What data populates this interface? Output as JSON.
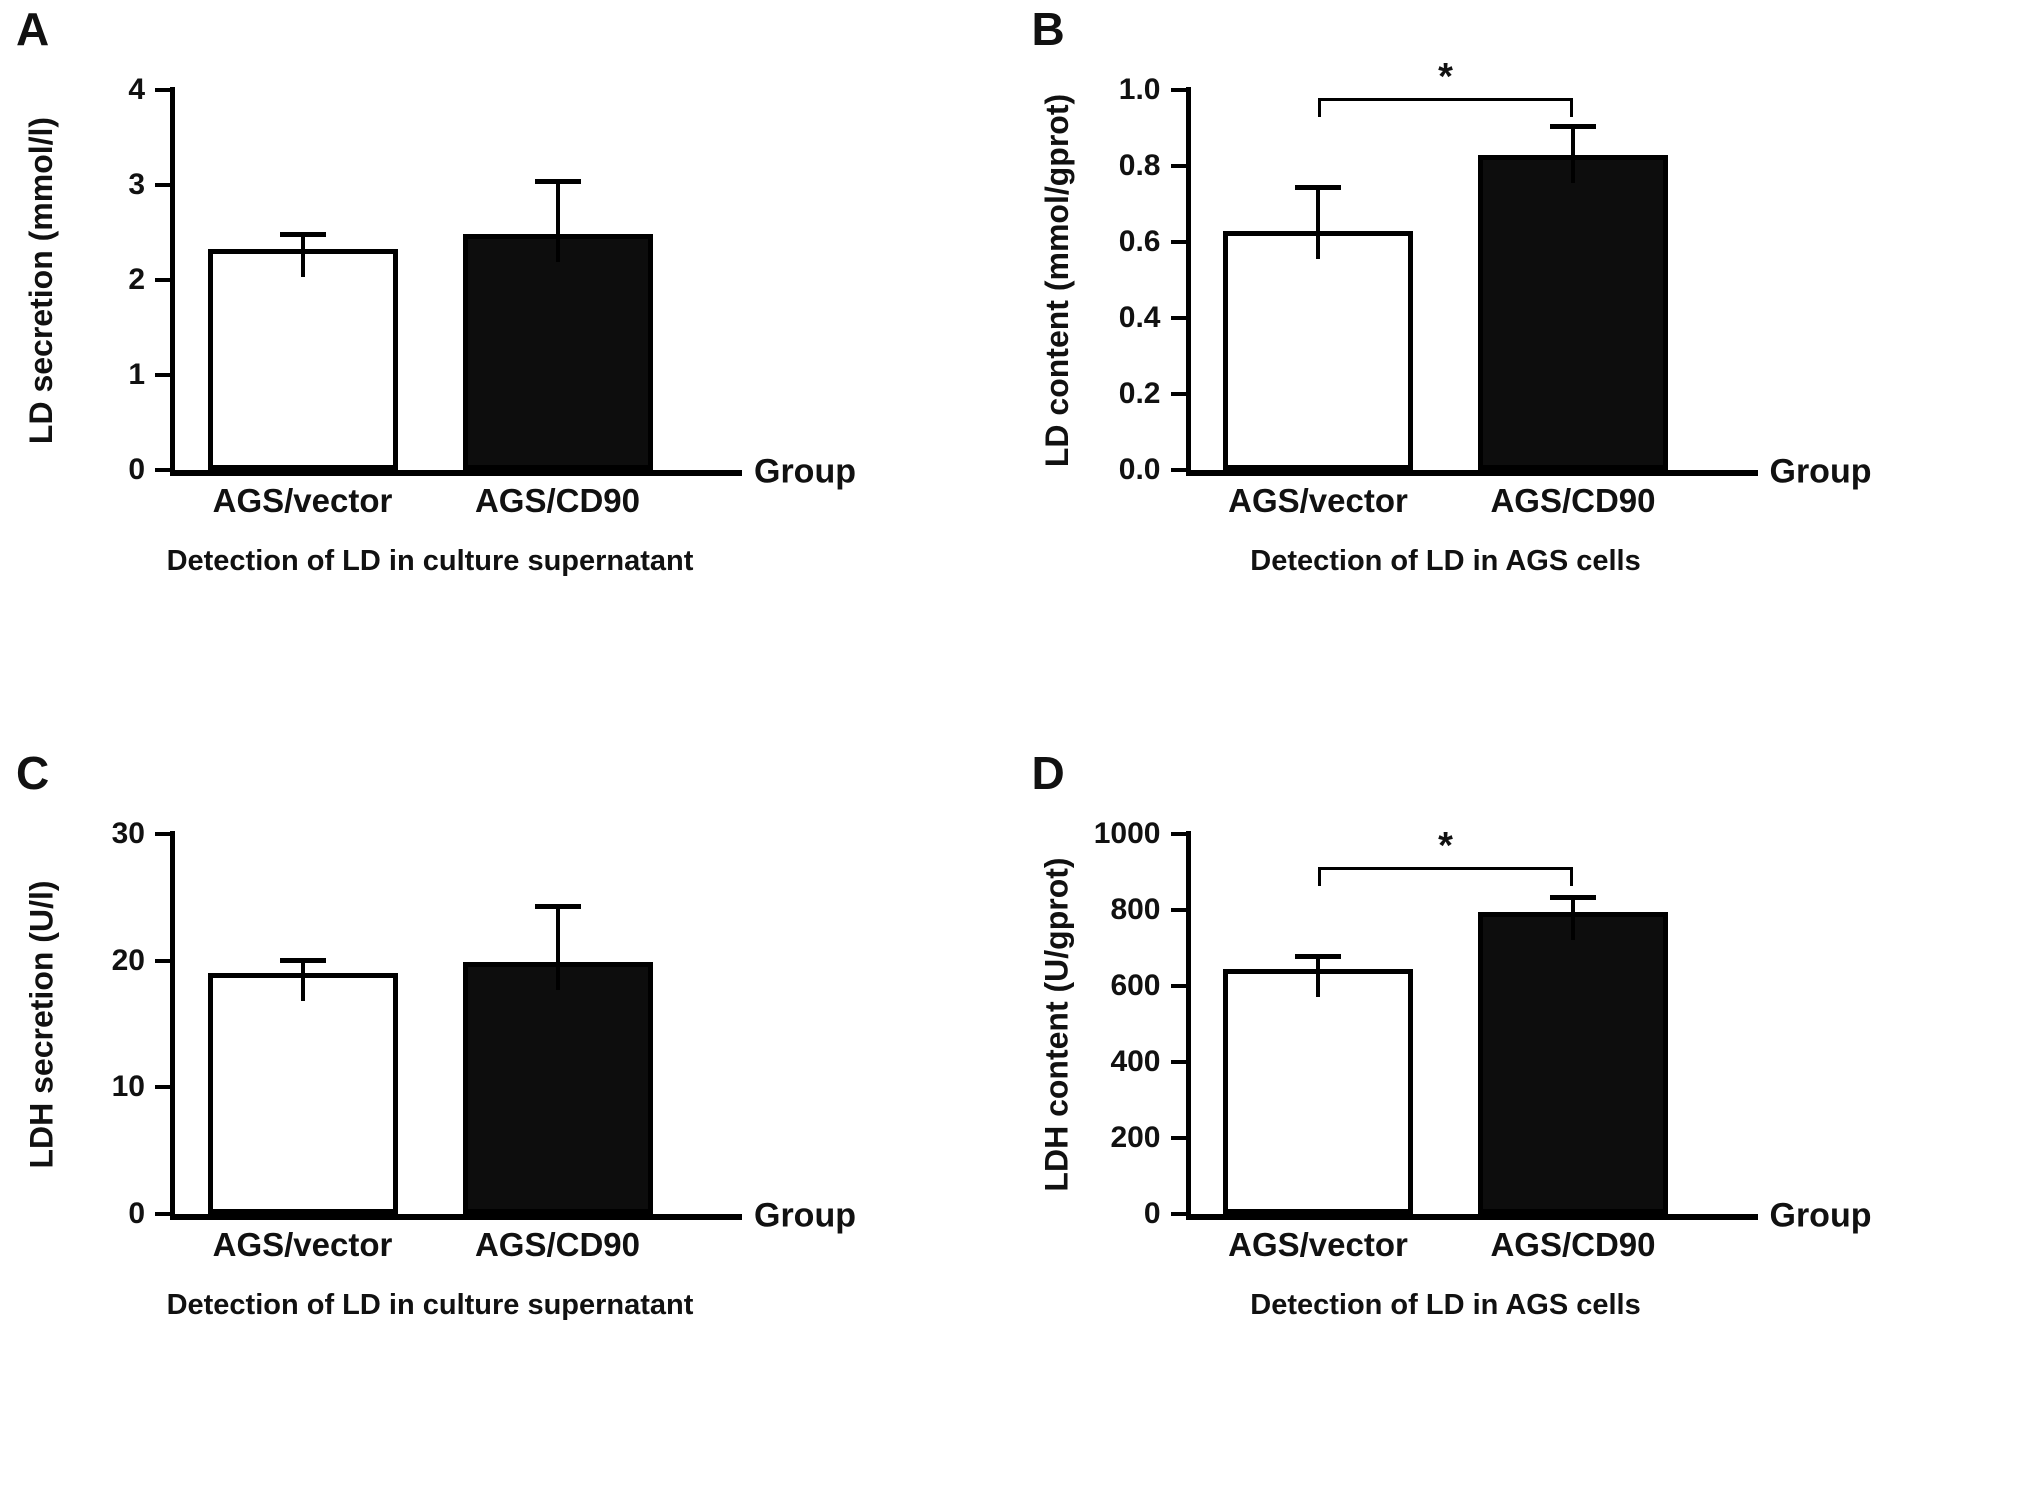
{
  "chart_data": [
    {
      "type": "bar",
      "panel": "A",
      "ylabel": "LD secretion (mmol/l)",
      "xlabel": "Group",
      "caption": "Detection of LD in culture supernatant",
      "categories": [
        "AGS/vector",
        "AGS/CD90"
      ],
      "values": [
        2.33,
        2.48
      ],
      "errors_plus": [
        0.18,
        0.58
      ],
      "bar_colors": [
        "#ffffff",
        "#0d0d0d"
      ],
      "ylim": [
        0,
        4
      ],
      "yticks": [
        0,
        1,
        2,
        3,
        4
      ],
      "ytick_labels": [
        "0",
        "1",
        "2",
        "3",
        "4"
      ],
      "legend": "none",
      "grid": false,
      "significance": null
    },
    {
      "type": "bar",
      "panel": "B",
      "ylabel": "LD content (mmol/gprot)",
      "xlabel": "Group",
      "caption": "Detection of LD in AGS cells",
      "categories": [
        "AGS/vector",
        "AGS/CD90"
      ],
      "values": [
        0.63,
        0.83
      ],
      "errors_plus": [
        0.12,
        0.08
      ],
      "bar_colors": [
        "#ffffff",
        "#0d0d0d"
      ],
      "ylim": [
        0,
        1.0
      ],
      "yticks": [
        0,
        0.2,
        0.4,
        0.6,
        0.8,
        1.0
      ],
      "ytick_labels": [
        "0.0",
        "0.2",
        "0.4",
        "0.6",
        "0.8",
        "1.0"
      ],
      "legend": "none",
      "grid": false,
      "significance": {
        "label": "*",
        "y": 0.97
      }
    },
    {
      "type": "bar",
      "panel": "C",
      "ylabel": "LDH secretion (U/l)",
      "xlabel": "Group",
      "caption": "Detection of LD in culture supernatant",
      "categories": [
        "AGS/vector",
        "AGS/CD90"
      ],
      "values": [
        19.0,
        19.9
      ],
      "errors_plus": [
        1.2,
        4.6
      ],
      "bar_colors": [
        "#ffffff",
        "#0d0d0d"
      ],
      "ylim": [
        0,
        30
      ],
      "yticks": [
        0,
        10,
        20,
        30
      ],
      "ytick_labels": [
        "0",
        "10",
        "20",
        "30"
      ],
      "legend": "none",
      "grid": false,
      "significance": null
    },
    {
      "type": "bar",
      "panel": "D",
      "ylabel": "LDH content (U/gprot)",
      "xlabel": "Group",
      "caption": "Detection of LD in AGS cells",
      "categories": [
        "AGS/vector",
        "AGS/CD90"
      ],
      "values": [
        645,
        795
      ],
      "errors_plus": [
        40,
        45
      ],
      "bar_colors": [
        "#ffffff",
        "#0d0d0d"
      ],
      "ylim": [
        0,
        1000
      ],
      "yticks": [
        0,
        200,
        400,
        600,
        800,
        1000
      ],
      "ytick_labels": [
        "0",
        "200",
        "400",
        "600",
        "800",
        "1000"
      ],
      "legend": "none",
      "grid": false,
      "significance": {
        "label": "*",
        "y": 905
      }
    }
  ]
}
